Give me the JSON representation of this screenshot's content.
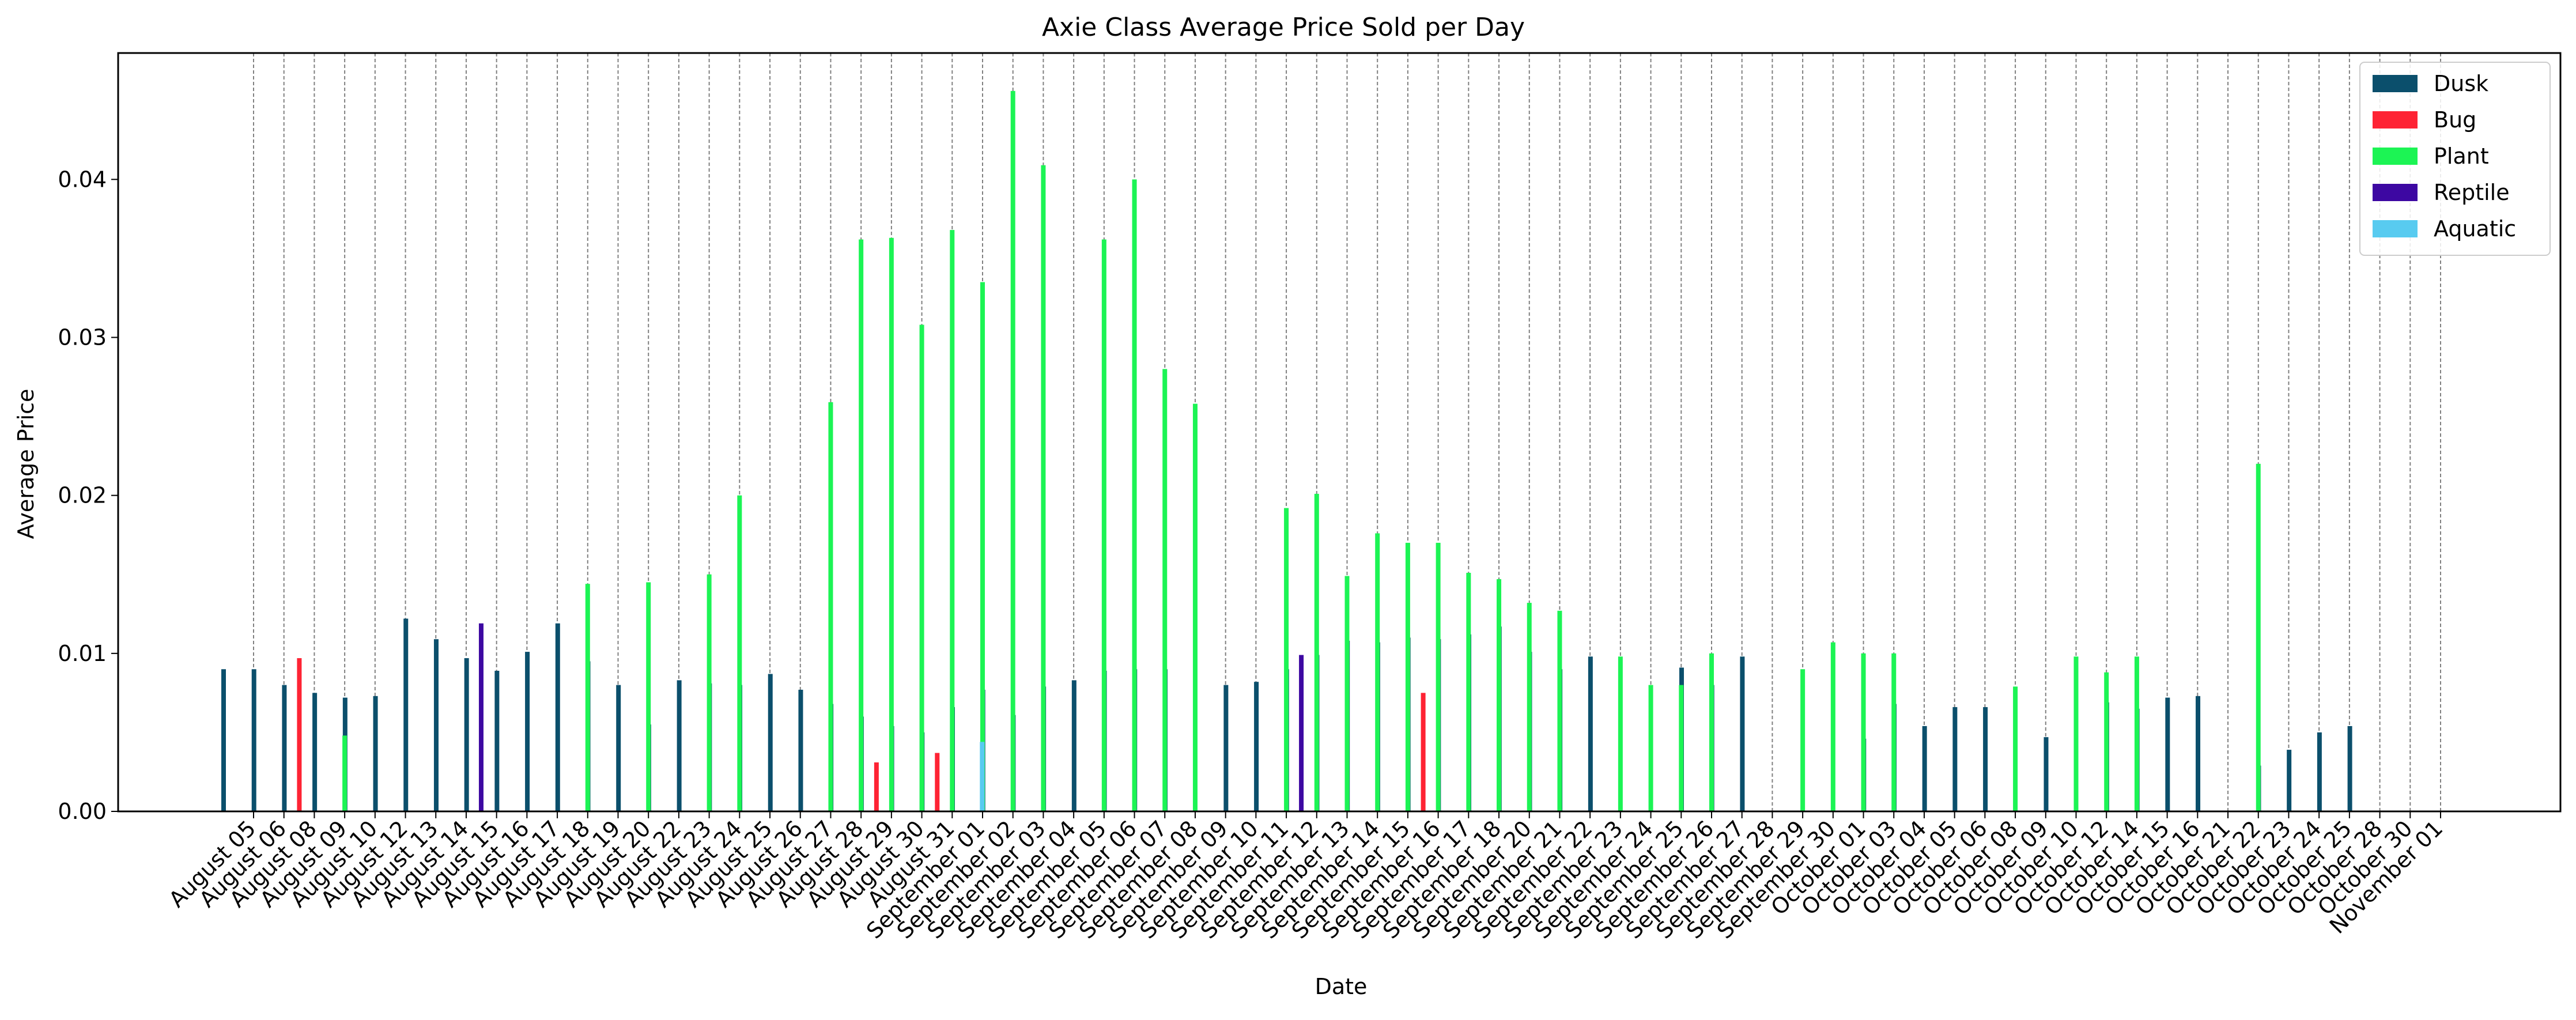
{
  "chart_data": {
    "type": "bar",
    "title": "Axie Class Average Price Sold per Day",
    "xlabel": "Date",
    "ylabel": "Average Price",
    "ylim": [
      0,
      0.048
    ],
    "yticks": [
      0.0,
      0.01,
      0.02,
      0.03,
      0.04
    ],
    "ytick_labels": [
      "0.00",
      "0.01",
      "0.02",
      "0.03",
      "0.04"
    ],
    "grid": "vertical dashed at each date",
    "legend_position": "top-right",
    "categories": [
      "August 05",
      "August 06",
      "August 08",
      "August 09",
      "August 10",
      "August 12",
      "August 13",
      "August 14",
      "August 15",
      "August 16",
      "August 17",
      "August 18",
      "August 19",
      "August 20",
      "August 22",
      "August 23",
      "August 24",
      "August 25",
      "August 26",
      "August 27",
      "August 28",
      "August 29",
      "August 30",
      "August 31",
      "September 01",
      "September 02",
      "September 03",
      "September 04",
      "September 05",
      "September 06",
      "September 07",
      "September 08",
      "September 09",
      "September 10",
      "September 11",
      "September 12",
      "September 13",
      "September 14",
      "September 15",
      "September 16",
      "September 17",
      "September 18",
      "September 20",
      "September 21",
      "September 22",
      "September 23",
      "September 24",
      "September 25",
      "September 26",
      "September 27",
      "September 28",
      "September 29",
      "September 30",
      "October 01",
      "October 03",
      "October 04",
      "October 05",
      "October 06",
      "October 08",
      "October 09",
      "October 10",
      "October 12",
      "October 14",
      "October 15",
      "October 16",
      "October 21",
      "October 22",
      "October 23",
      "October 24",
      "October 25",
      "October 28",
      "October 30",
      "November 01"
    ],
    "series": [
      {
        "name": "Dusk",
        "color": "#0b4f6c",
        "values": [
          0.009,
          0.009,
          0.008,
          0.0075,
          0.0072,
          0.0073,
          0.0122,
          0.0109,
          0.0097,
          0.0089,
          0.0101,
          0.0119,
          0.0095,
          0.008,
          0.0055,
          0.0083,
          0.0081,
          0.008,
          0.0087,
          0.0077,
          0.0068,
          0.006,
          0.0054,
          0.005,
          0.0066,
          0.0077,
          0.0061,
          0.0079,
          0.0083,
          0.0089,
          0.009,
          0.009,
          null,
          0.008,
          0.0082,
          0.009,
          0.0099,
          0.0108,
          0.0107,
          0.011,
          0.0109,
          0.0112,
          0.0117,
          0.0101,
          0.009,
          0.0098,
          null,
          null,
          0.0091,
          0.008,
          0.0098,
          null,
          null,
          null,
          0.0046,
          0.0068,
          0.0054,
          0.0066,
          0.0066,
          null,
          0.0047,
          null,
          0.0069,
          0.0065,
          0.0072,
          0.0073,
          null,
          0.0029,
          0.0039,
          0.005,
          0.0054,
          null,
          null
        ]
      },
      {
        "name": "Bug",
        "color": "#fe2334",
        "values": [
          null,
          null,
          0.0097,
          null,
          null,
          null,
          null,
          null,
          null,
          null,
          null,
          null,
          null,
          null,
          null,
          null,
          null,
          null,
          null,
          null,
          null,
          0.0031,
          null,
          0.0037,
          null,
          null,
          null,
          null,
          null,
          null,
          null,
          null,
          null,
          null,
          null,
          null,
          null,
          null,
          null,
          0.0075,
          null,
          null,
          null,
          null,
          null,
          null,
          null,
          null,
          null,
          null,
          null,
          null,
          null,
          null,
          null,
          null,
          null,
          null,
          null,
          null,
          null,
          null,
          null,
          null,
          null,
          null,
          null,
          null,
          null,
          null,
          null,
          null,
          null
        ]
      },
      {
        "name": "Plant",
        "color": "#1cf454",
        "values": [
          null,
          null,
          null,
          0.0048,
          null,
          null,
          null,
          null,
          null,
          null,
          null,
          0.0144,
          null,
          0.0145,
          null,
          0.015,
          0.02,
          null,
          null,
          0.0259,
          0.0362,
          0.0363,
          0.0308,
          0.0368,
          0.0335,
          0.0456,
          0.0409,
          null,
          0.0362,
          0.04,
          0.028,
          0.0258,
          null,
          null,
          0.0192,
          0.0201,
          0.0149,
          0.0176,
          0.017,
          0.017,
          0.0151,
          0.0147,
          0.0132,
          0.0127,
          null,
          0.0098,
          0.008,
          0.008,
          0.01,
          null,
          null,
          0.009,
          0.0107,
          0.01,
          0.01,
          null,
          null,
          null,
          0.0079,
          null,
          0.0098,
          0.0088,
          0.0098,
          null,
          null,
          null,
          0.022,
          null,
          null,
          null,
          null,
          null,
          null
        ]
      },
      {
        "name": "Reptile",
        "color": "#3d08a2",
        "values": [
          null,
          null,
          null,
          null,
          null,
          null,
          null,
          0.0119,
          null,
          null,
          null,
          null,
          null,
          null,
          null,
          null,
          null,
          null,
          null,
          null,
          null,
          null,
          null,
          null,
          null,
          null,
          null,
          null,
          null,
          null,
          null,
          null,
          null,
          null,
          0.0099,
          null,
          null,
          null,
          null,
          null,
          null,
          null,
          null,
          null,
          null,
          null,
          null,
          null,
          null,
          null,
          null,
          null,
          null,
          null,
          null,
          null,
          null,
          null,
          null,
          null,
          null,
          null,
          null,
          null,
          null,
          null,
          null,
          null,
          null,
          null,
          null,
          null,
          null
        ]
      },
      {
        "name": "Aquatic",
        "color": "#58cbf0",
        "values": [
          null,
          null,
          null,
          null,
          null,
          null,
          null,
          null,
          null,
          null,
          null,
          null,
          null,
          null,
          null,
          null,
          null,
          null,
          null,
          null,
          null,
          null,
          null,
          0.0044,
          null,
          null,
          null,
          null,
          null,
          null,
          null,
          null,
          null,
          null,
          null,
          null,
          null,
          null,
          null,
          null,
          null,
          null,
          null,
          null,
          null,
          null,
          null,
          null,
          null,
          null,
          null,
          null,
          null,
          null,
          null,
          null,
          null,
          null,
          null,
          null,
          null,
          null,
          null,
          null,
          null,
          null,
          null,
          null,
          null,
          null,
          null,
          null,
          null
        ]
      }
    ]
  }
}
